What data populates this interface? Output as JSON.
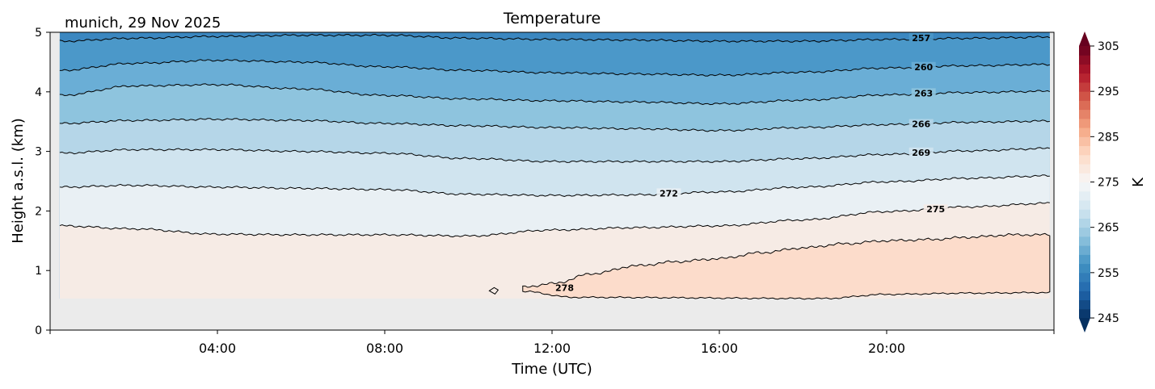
{
  "chart_data": {
    "type": "contour",
    "title": "Temperature",
    "subtitle": "munich, 29 Nov 2025",
    "xlabel": "Time (UTC)",
    "ylabel": "Height a.s.l. (km)",
    "xlim": [
      0,
      24
    ],
    "ylim": [
      0,
      5
    ],
    "x_ticks": [
      4,
      8,
      12,
      16,
      20
    ],
    "x_tick_labels": [
      "04:00",
      "08:00",
      "12:00",
      "16:00",
      "20:00"
    ],
    "y_ticks": [
      0,
      1,
      2,
      3,
      4,
      5
    ],
    "y_tick_labels": [
      "0",
      "1",
      "2",
      "3",
      "4",
      "5"
    ],
    "data_time_range": [
      0.23,
      23.9
    ],
    "data_min_height": 0.53,
    "colorbar": {
      "label": "K",
      "range": [
        245,
        305
      ],
      "step": 2,
      "ticks": [
        245,
        255,
        265,
        275,
        285,
        295,
        305
      ],
      "tick_labels": [
        "245",
        "255",
        "265",
        "275",
        "285",
        "295",
        "305"
      ],
      "extend": "both"
    },
    "hours": [
      0.23,
      2,
      4,
      6,
      8,
      10,
      12,
      14,
      16,
      18,
      20,
      22,
      23.9
    ],
    "contours": [
      {
        "level": "257",
        "heights": [
          4.85,
          4.9,
          4.93,
          4.95,
          4.95,
          4.9,
          4.88,
          4.87,
          4.85,
          4.85,
          4.88,
          4.9,
          4.92
        ],
        "label_at": 20.8,
        "fill_below": "#4b98c9"
      },
      {
        "level": "260",
        "heights": [
          4.36,
          4.48,
          4.53,
          4.5,
          4.42,
          4.36,
          4.32,
          4.3,
          4.28,
          4.33,
          4.4,
          4.44,
          4.46
        ],
        "label_at": 20.9,
        "fill_below": "#6aaed6"
      },
      {
        "level": "263",
        "heights": [
          3.94,
          4.1,
          4.12,
          4.05,
          3.94,
          3.88,
          3.85,
          3.83,
          3.8,
          3.86,
          3.95,
          3.99,
          4.01
        ],
        "label_at": 20.9,
        "fill_below": "#8ec4de"
      },
      {
        "level": "266",
        "heights": [
          3.47,
          3.52,
          3.54,
          3.52,
          3.47,
          3.43,
          3.4,
          3.38,
          3.35,
          3.4,
          3.45,
          3.49,
          3.51
        ],
        "label_at": 20.8,
        "fill_below": "#b5d6e8"
      },
      {
        "level": "269",
        "heights": [
          2.97,
          3.03,
          3.03,
          3.0,
          2.97,
          2.88,
          2.83,
          2.83,
          2.83,
          2.88,
          2.95,
          3.01,
          3.05
        ],
        "label_at": 20.8,
        "fill_below": "#d0e4ef"
      },
      {
        "level": "272",
        "heights": [
          2.4,
          2.43,
          2.4,
          2.38,
          2.36,
          2.28,
          2.26,
          2.27,
          2.32,
          2.4,
          2.49,
          2.55,
          2.59
        ],
        "label_at": 14.8,
        "fill_below": "#e9f0f4"
      },
      {
        "level": "275",
        "heights": [
          1.75,
          1.7,
          1.61,
          1.6,
          1.6,
          1.58,
          1.68,
          1.72,
          1.75,
          1.85,
          1.99,
          2.07,
          2.13
        ],
        "label_at": 21.2,
        "fill_below": "#f6ebe5"
      }
    ],
    "contour_278": {
      "level": "278",
      "upper_hours": [
        11.3,
        12,
        13,
        14,
        15,
        16,
        17,
        18,
        19,
        20,
        21,
        22,
        23,
        23.9
      ],
      "upper_heights": [
        0.72,
        0.78,
        0.95,
        1.08,
        1.15,
        1.2,
        1.3,
        1.38,
        1.45,
        1.5,
        1.52,
        1.56,
        1.6,
        1.6
      ],
      "lower_hours": [
        23.9,
        22,
        20,
        18.5,
        12.5,
        11.3
      ],
      "lower_heights": [
        0.63,
        0.62,
        0.6,
        0.53,
        0.55,
        0.65
      ],
      "label_at": 12.3,
      "fill": "#fcdccb"
    },
    "fill_above_top": "#3b87c0",
    "no_data_color": "#ebebeb"
  }
}
